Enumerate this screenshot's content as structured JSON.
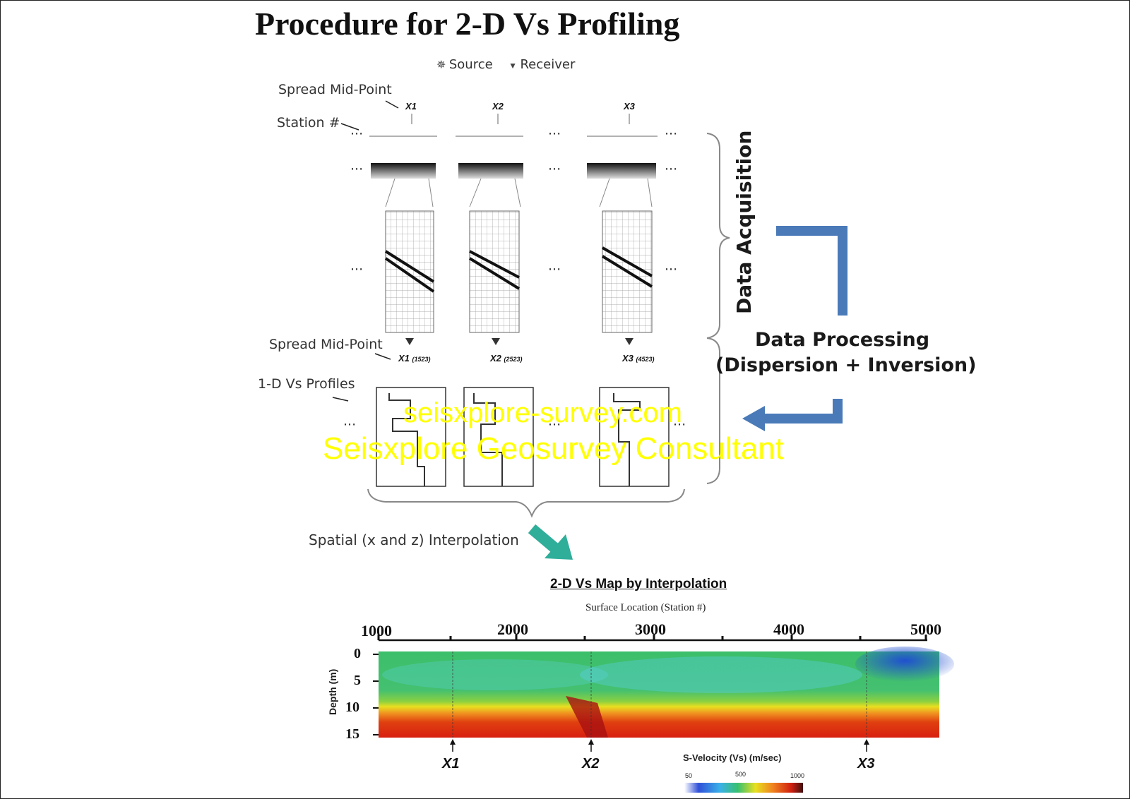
{
  "title": "Procedure for 2-D Vs Profiling",
  "legend": {
    "source_label": "Source",
    "receiver_label": "Receiver"
  },
  "labels": {
    "spread_midpoint_top": "Spread Mid-Point",
    "station_number": "Station #",
    "spread_midpoint_bottom": "Spread Mid-Point",
    "profiles_1d": "1-D Vs Profiles",
    "interpolation": "Spatial (x and z) Interpolation",
    "ellipsis": "···"
  },
  "stations": [
    {
      "id": "X1",
      "station_value": "(1523)"
    },
    {
      "id": "X2",
      "station_value": "(2523)"
    },
    {
      "id": "X3",
      "station_value": "(4523)"
    }
  ],
  "stages": {
    "data_acquisition": "Data Acquisition",
    "data_processing_line1": "Data Processing",
    "data_processing_line2": "(Dispersion + Inversion)"
  },
  "watermark": {
    "line1": "seisxplore-survey.com",
    "line2": "Seisxplore Geosurvey Consultant"
  },
  "map": {
    "title": "2-D Vs Map by Interpolation",
    "subtitle": "Surface Location (Station #)",
    "x_ticks": [
      "1000",
      "2000",
      "3000",
      "4000",
      "5000"
    ],
    "y_label": "Depth (m)",
    "y_ticks": [
      "0",
      "5",
      "10",
      "15"
    ],
    "markers": [
      "X1",
      "X2",
      "X3"
    ],
    "colorbar": {
      "label": "S-Velocity (Vs) (m/sec)",
      "ticks": [
        "50",
        "500",
        "1000"
      ],
      "colors": [
        "#ffffff",
        "#3050d8",
        "#3ab0e8",
        "#38c070",
        "#e8e020",
        "#f08020",
        "#d02010",
        "#401010"
      ]
    }
  },
  "colors": {
    "arrow_blue": "#4a7ab8",
    "arrow_teal": "#2fae9a"
  }
}
